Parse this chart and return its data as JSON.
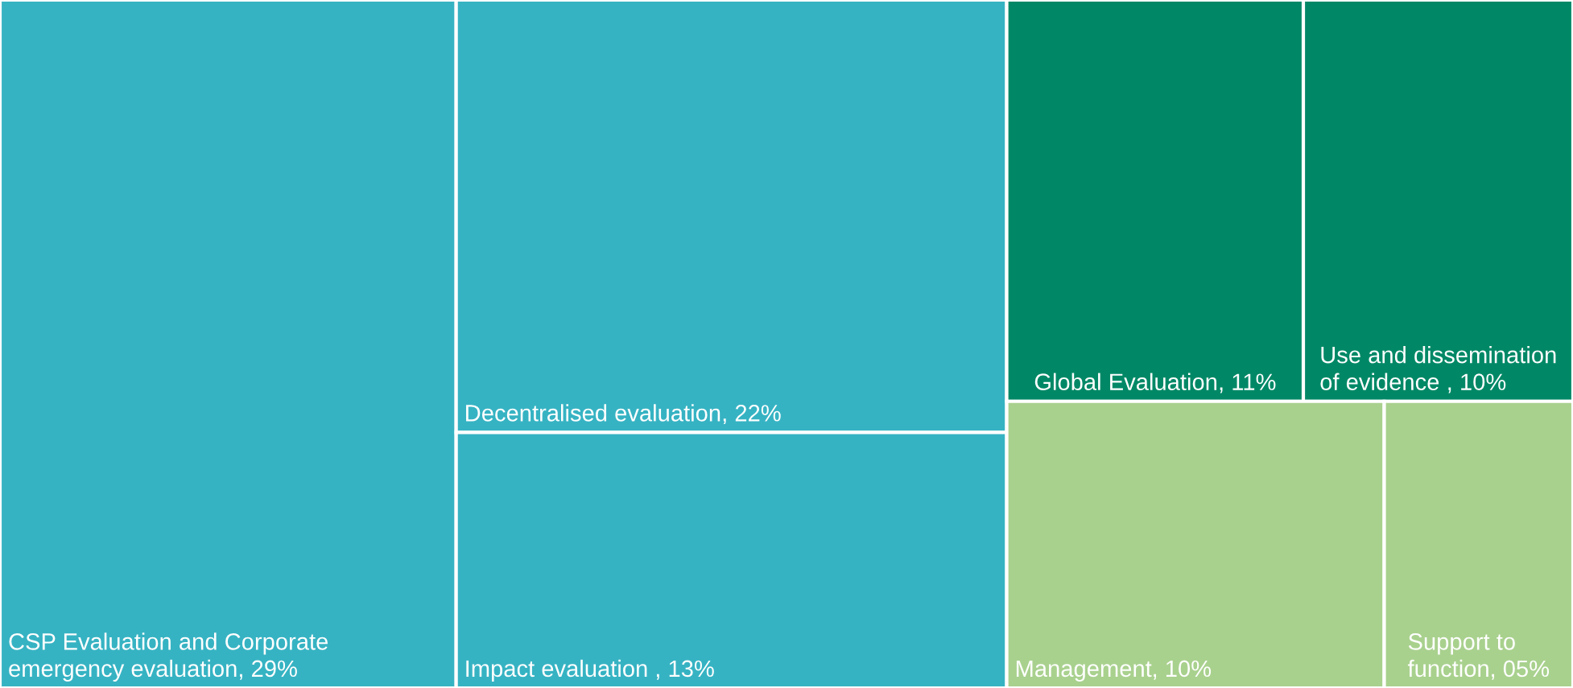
{
  "chart_data": {
    "type": "other",
    "categories": [
      "CSP Evaluation and Corporate emergency evaluation",
      "Decentralised evaluation",
      "Impact evaluation ",
      "Global Evaluation",
      "Use and dissemination of evidence ",
      "Management",
      "Support to function"
    ],
    "values": [
      29,
      22,
      13,
      11,
      10,
      10,
      5
    ],
    "value_labels": [
      ", 29%",
      ", 22%",
      ", 13%",
      ", 11%",
      ", 10%",
      ", 10%",
      ", 05%"
    ],
    "colors": [
      "#36b3c3",
      "#36b3c3",
      "#36b3c3",
      "#008866",
      "#008866",
      "#a9d18e",
      "#a9d18e"
    ]
  }
}
